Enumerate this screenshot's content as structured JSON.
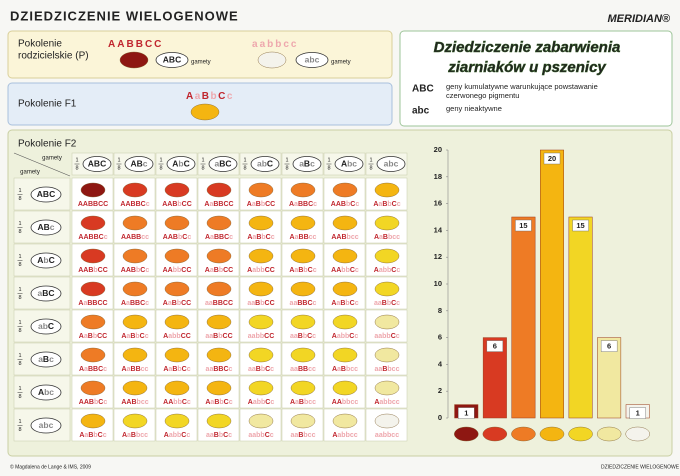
{
  "header": {
    "title": "DZIEDZICZENIE WIELOGENOWE",
    "brand": "MERIDIAN®"
  },
  "parental": {
    "label": [
      "Pokolenie",
      "rodzicielskie (P)"
    ],
    "parent1": {
      "genotype": "AABBCC",
      "gamete": "ABC"
    },
    "parent2": {
      "genotype": "aabbcc",
      "gamete": "abc"
    },
    "gamete_label": "gamety"
  },
  "f1": {
    "label": "Pokolenie F1",
    "genotype": "AaBbCc"
  },
  "info": {
    "title": [
      "Dziedziczenie zabarwienia",
      "ziarniaków u pszenicy"
    ],
    "legend": [
      {
        "symbol": "ABC",
        "text": [
          "geny kumulatywne warunkujące powstawanie",
          "czerwonego pigmentu"
        ]
      },
      {
        "symbol": "abc",
        "text": [
          "geny nieaktywne"
        ]
      }
    ]
  },
  "f2": {
    "label": "Pokolenie F2",
    "corner": [
      "gamety",
      "gamety"
    ],
    "fraction": [
      "1",
      "8"
    ],
    "gametes": [
      "ABC",
      "ABc",
      "AbC",
      "aBC",
      "abC",
      "aBc",
      "Abc",
      "abc"
    ],
    "seed_colors": [
      "#f4f3ec",
      "#f1e8a0",
      "#f2d624",
      "#f4b511",
      "#ee7b25",
      "#d83a22",
      "#8e1712"
    ],
    "genotypes": [
      [
        "AABBCC",
        "AABBCc",
        "AABbCC",
        "AaBBCC",
        "AaBbCC",
        "AaBBCc",
        "AABbCc",
        "AaBbCc"
      ],
      [
        "AABBCc",
        "AABBcc",
        "AABbCc",
        "AaBBCc",
        "AaBbCc",
        "AaBBcc",
        "AABbcc",
        "AaBbcc"
      ],
      [
        "AABbCC",
        "AABbCc",
        "AAbbCC",
        "AaBbCC",
        "AabbCC",
        "AaBbCc",
        "AAbbCc",
        "AabbCc"
      ],
      [
        "AaBBCC",
        "AaBBCc",
        "AaBbCC",
        "aaBBCC",
        "aaBbCC",
        "aaBBCc",
        "AaBbCc",
        "aaBbCc"
      ],
      [
        "AaBbCC",
        "AaBbCc",
        "AabbCC",
        "aaBbCC",
        "aabbCC",
        "aaBbCc",
        "AabbCc",
        "aabbCc"
      ],
      [
        "AaBBCc",
        "AaBBcc",
        "AaBbCc",
        "aaBBCc",
        "aaBbCc",
        "aaBBcc",
        "AaBbcc",
        "aaBbcc"
      ],
      [
        "AABbCc",
        "AABbcc",
        "AAbbCc",
        "AaBbCc",
        "AabbCc",
        "AaBbcc",
        "AAbbcc",
        "Aabbcc"
      ],
      [
        "AaBbCc",
        "AaBbcc",
        "AabbCc",
        "aaBbCc",
        "aabbCc",
        "aaBbcc",
        "Aabbcc",
        "aabbcc"
      ]
    ]
  },
  "chart_data": {
    "type": "bar",
    "categories": [
      null,
      null,
      null,
      null,
      null,
      null,
      null
    ],
    "values": [
      1,
      6,
      15,
      20,
      15,
      6,
      1
    ],
    "colors": [
      "#8e1712",
      "#d83a22",
      "#ee7b25",
      "#f4b511",
      "#f2d624",
      "#f1e8a0",
      "#f4f3ec"
    ],
    "ylim": [
      0,
      20
    ],
    "yticks": [
      0,
      2,
      4,
      6,
      8,
      10,
      12,
      14,
      16,
      18,
      20
    ],
    "grid": false
  },
  "footer": {
    "left": "© Magdalena de Lange & IMS, 2009",
    "right": "DZIEDZICZENIE WIELOGENOWE"
  }
}
